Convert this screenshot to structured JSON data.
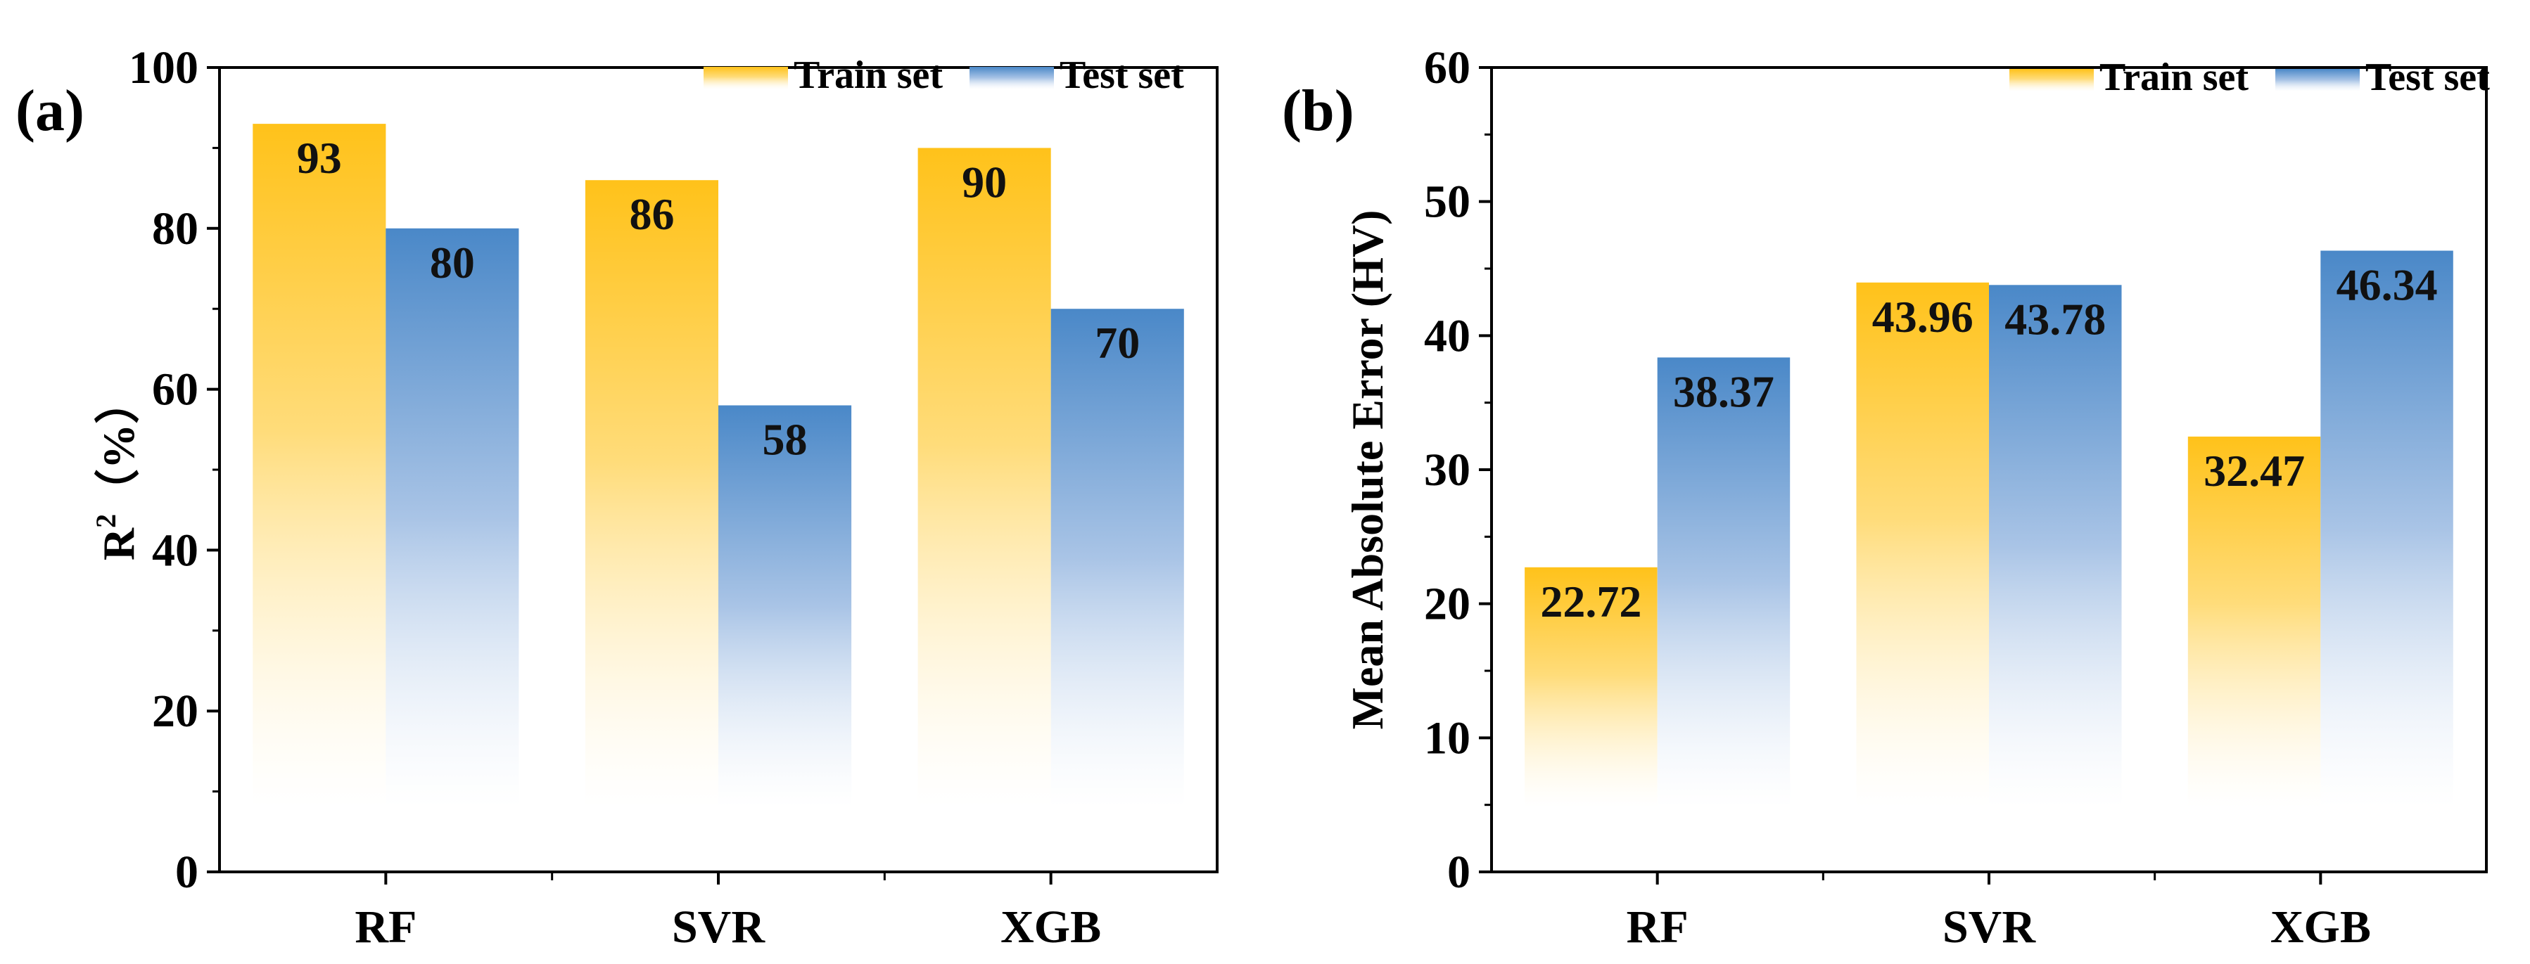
{
  "chart_data": [
    {
      "type": "bar",
      "panel": "(a)",
      "ylabel": "R² (%)",
      "ylabel_base": "R",
      "ylabel_sup": "2",
      "ylabel_unit": "（%）",
      "xlabel": "",
      "ylim": [
        0,
        100
      ],
      "yticks": [
        0,
        20,
        40,
        60,
        80,
        100
      ],
      "categories": [
        "RF",
        "SVR",
        "XGB"
      ],
      "series": [
        {
          "name": "Train set",
          "values": [
            93,
            86,
            90
          ],
          "labels": [
            "93",
            "86",
            "90"
          ]
        },
        {
          "name": "Test set",
          "values": [
            80,
            58,
            70
          ],
          "labels": [
            "80",
            "58",
            "70"
          ]
        }
      ],
      "legend_position": "top-right"
    },
    {
      "type": "bar",
      "panel": "(b)",
      "ylabel": "Mean Absolute Error (HV)",
      "xlabel": "",
      "ylim": [
        0,
        60
      ],
      "yticks": [
        0,
        10,
        20,
        30,
        40,
        50,
        60
      ],
      "categories": [
        "RF",
        "SVR",
        "XGB"
      ],
      "series": [
        {
          "name": "Train set",
          "values": [
            22.72,
            43.96,
            32.47
          ],
          "labels": [
            "22.72",
            "43.96",
            "32.47"
          ]
        },
        {
          "name": "Test set",
          "values": [
            38.37,
            43.78,
            46.34
          ],
          "labels": [
            "38.37",
            "43.78",
            "46.34"
          ]
        }
      ],
      "legend_position": "top-right"
    }
  ],
  "colors": {
    "train_top": "#FFC21A",
    "train_bottom": "#FFFFFF",
    "test_top": "#4A88C8",
    "test_bottom": "#FFFFFF",
    "axis": "#000000"
  }
}
